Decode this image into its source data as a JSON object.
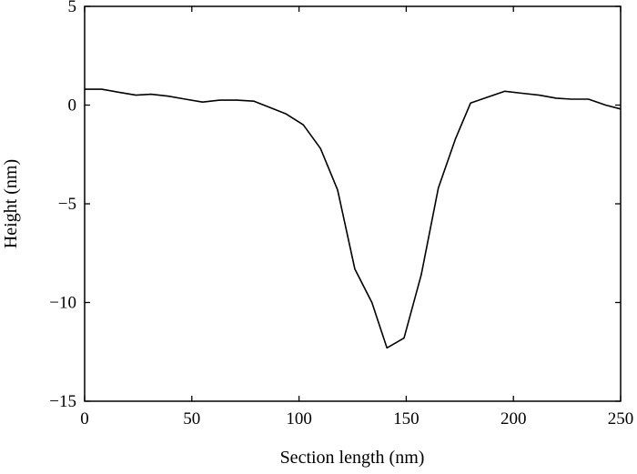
{
  "chart_data": {
    "type": "line",
    "title": "",
    "xlabel": "Section length (nm)",
    "ylabel": "Height (nm)",
    "xlim": [
      0,
      250
    ],
    "ylim": [
      -15,
      5
    ],
    "xticks": [
      0,
      50,
      100,
      150,
      200,
      250
    ],
    "yticks": [
      5,
      0,
      -5,
      -10,
      -15
    ],
    "xtick_labels": [
      "0",
      "50",
      "100",
      "150",
      "200",
      "250"
    ],
    "ytick_labels": [
      "5",
      "0",
      "−5",
      "−10",
      "−15"
    ],
    "grid": false,
    "legend": "none",
    "line_color": "#000000",
    "series": [
      {
        "x": [
          0,
          8,
          16,
          24,
          31,
          39,
          47,
          55,
          63,
          71,
          79,
          86,
          94,
          102,
          110,
          118,
          126,
          134,
          141,
          149,
          157,
          165,
          173,
          180,
          188,
          196,
          204,
          212,
          220,
          227,
          235,
          243,
          250
        ],
        "y": [
          0.8,
          0.8,
          0.65,
          0.5,
          0.55,
          0.45,
          0.3,
          0.15,
          0.25,
          0.25,
          0.2,
          -0.1,
          -0.45,
          -1.0,
          -2.2,
          -4.3,
          -8.3,
          -10.0,
          -12.3,
          -11.8,
          -8.6,
          -4.2,
          -1.7,
          0.1,
          0.4,
          0.7,
          0.6,
          0.5,
          0.35,
          0.3,
          0.3,
          0.0,
          -0.2
        ]
      }
    ]
  }
}
